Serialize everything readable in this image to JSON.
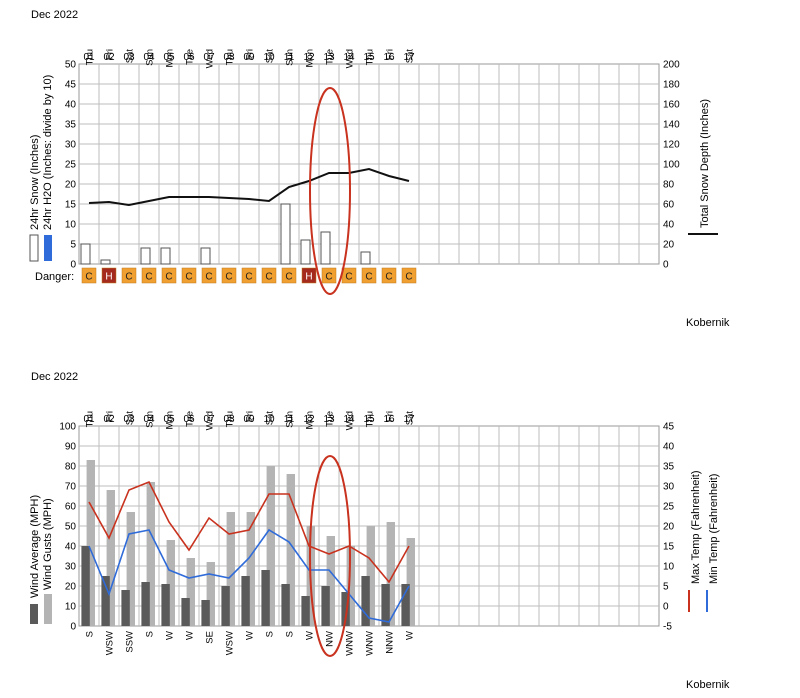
{
  "chart_data": [
    {
      "type": "bar",
      "title": "Dec 2022",
      "days": [
        "01",
        "02",
        "03",
        "04",
        "05",
        "06",
        "07",
        "08",
        "09",
        "10",
        "11",
        "12",
        "13",
        "14",
        "15",
        "16",
        "17"
      ],
      "weekdays": [
        "Thu",
        "Fri",
        "Sat",
        "Sun",
        "Mon",
        "Tue",
        "Wed",
        "Thu",
        "Fri",
        "Sat",
        "Sun",
        "Mon",
        "Tue",
        "Wed",
        "Thu",
        "Fri",
        "Sat"
      ],
      "ylabel_left": [
        "24hr Snow (Inches)",
        "24hr H2O (Inches: divide by 10)"
      ],
      "ylabel_right": "Total Snow Depth (Inches)",
      "ylim_left": [
        0,
        50
      ],
      "ylim_right": [
        0,
        200
      ],
      "yticks_left": [
        "0",
        "5",
        "10",
        "15",
        "20",
        "25",
        "30",
        "35",
        "40",
        "45",
        "50"
      ],
      "yticks_right": [
        "0",
        "20",
        "40",
        "60",
        "80",
        "100",
        "120",
        "140",
        "160",
        "180",
        "200"
      ],
      "series": [
        {
          "name": "24hr Snow (Inches)",
          "type": "bar",
          "values": [
            5,
            1,
            0,
            4,
            4,
            0,
            4,
            0,
            0,
            0,
            15,
            6,
            8,
            0,
            3,
            0,
            0
          ]
        },
        {
          "name": "Total Snow Depth (Inches)",
          "type": "line",
          "axis": "right",
          "values": [
            61,
            62,
            59,
            63,
            67,
            67,
            67,
            66,
            65,
            63,
            77,
            83,
            91,
            91,
            95,
            88,
            83
          ]
        }
      ],
      "danger_label": "Danger:",
      "danger": [
        "C",
        "H",
        "C",
        "C",
        "C",
        "C",
        "C",
        "C",
        "C",
        "C",
        "C",
        "H",
        "C",
        "C",
        "C",
        "C",
        "C"
      ],
      "footer": "Kobernik",
      "colors": {
        "bar_stroke": "#555555",
        "depth_line": "#111111",
        "h2o": "#2f6bd9",
        "danger_c": "#f0a030",
        "danger_h": "#a52a1e",
        "highlight": "#c8321e"
      }
    },
    {
      "type": "bar",
      "title": "Dec 2022",
      "days": [
        "01",
        "02",
        "03",
        "04",
        "05",
        "06",
        "07",
        "08",
        "09",
        "10",
        "11",
        "12",
        "13",
        "14",
        "15",
        "16",
        "17"
      ],
      "weekdays": [
        "Thu",
        "Fri",
        "Sat",
        "Sun",
        "Mon",
        "Tue",
        "Wed",
        "Thu",
        "Fri",
        "Sat",
        "Sun",
        "Mon",
        "Tue",
        "Wed",
        "Thu",
        "Fri",
        "Sat"
      ],
      "ylabel_left": [
        "Wind Average (MPH)",
        "Wind Gusts (MPH)"
      ],
      "ylabel_right": [
        "Max Temp (Fahrenheit)",
        "Min Temp (Fahrenheit)"
      ],
      "ylim_left": [
        0,
        100
      ],
      "ylim_right": [
        -5,
        45
      ],
      "yticks_left": [
        "0",
        "10",
        "20",
        "30",
        "40",
        "50",
        "60",
        "70",
        "80",
        "90",
        "100"
      ],
      "yticks_right": [
        "-5",
        "0",
        "5",
        "10",
        "15",
        "20",
        "25",
        "30",
        "35",
        "40",
        "45"
      ],
      "series": [
        {
          "name": "Wind Gusts (MPH)",
          "type": "bar",
          "values": [
            83,
            68,
            57,
            72,
            43,
            34,
            32,
            57,
            57,
            80,
            76,
            50,
            45,
            40,
            50,
            52,
            44
          ]
        },
        {
          "name": "Wind Average (MPH)",
          "type": "bar",
          "values": [
            40,
            25,
            18,
            22,
            21,
            14,
            13,
            20,
            25,
            28,
            21,
            15,
            20,
            17,
            25,
            21,
            21
          ]
        },
        {
          "name": "Max Temp (Fahrenheit)",
          "type": "line",
          "axis": "right",
          "values": [
            26,
            17,
            29,
            31,
            21,
            14,
            22,
            18,
            19,
            28,
            28,
            15,
            13,
            15,
            12,
            6,
            15
          ]
        },
        {
          "name": "Min Temp (Fahrenheit)",
          "type": "line",
          "axis": "right",
          "values": [
            15,
            3,
            18,
            19,
            9,
            7,
            8,
            7,
            12,
            19,
            16,
            9,
            9,
            3,
            -3,
            -4,
            5
          ]
        }
      ],
      "wind_dirs": [
        "S",
        "WSW",
        "SSW",
        "S",
        "W",
        "W",
        "SE",
        "WSW",
        "W",
        "S",
        "S",
        "W",
        "NW",
        "WNW",
        "WNW",
        "NNW",
        "W"
      ],
      "footer": "Kobernik",
      "colors": {
        "gust": "#b4b4b4",
        "avg": "#5a5a5a",
        "max_temp": "#c8321e",
        "min_temp": "#2f6bd9",
        "highlight": "#c8321e"
      }
    }
  ]
}
